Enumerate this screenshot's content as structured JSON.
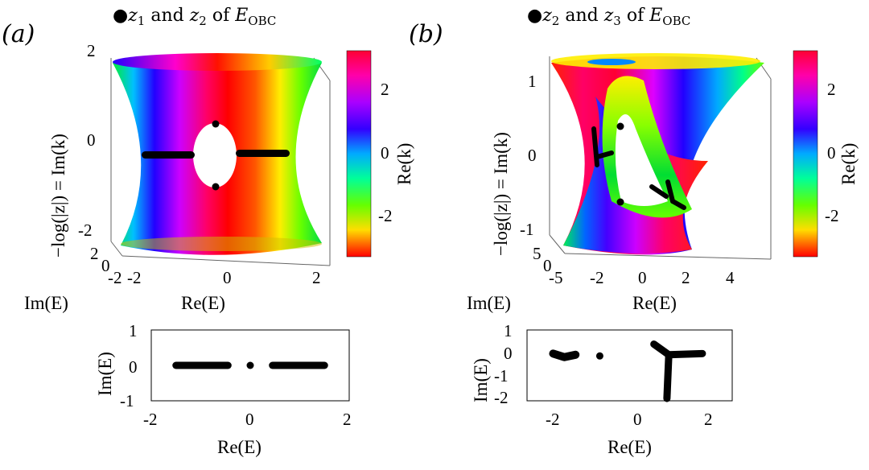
{
  "panels": [
    {
      "label": "(a)",
      "title": "●z₁ and z₂ of E_OBC",
      "surface_z_label": "−log(|z|) = Im(k)",
      "surface_x_label": "Re(E)",
      "surface_y_label": "Im(E)",
      "colorbar_label": "Re(k)",
      "colorbar_ticks": [
        "2",
        "0",
        "-2"
      ],
      "surface_z_ticks": [
        "2",
        "0",
        "-2"
      ],
      "surface_x_ticks": [
        "-2",
        "0",
        "2"
      ],
      "surface_y_ticks": [
        "2",
        "0",
        "-2"
      ],
      "spectrum_xlabel": "Re(E)",
      "spectrum_ylabel": "Im(E)",
      "spectrum_x_ticks": [
        "-2",
        "0",
        "2"
      ],
      "spectrum_y_ticks": [
        "1",
        "0",
        "-1"
      ]
    },
    {
      "label": "(b)",
      "title": "●z₂ and z₃ of E_OBC",
      "surface_z_label": "−log(|z|) = Im(k)",
      "surface_x_label": "Re(E)",
      "surface_y_label": "Im(E)",
      "colorbar_label": "Re(k)",
      "colorbar_ticks": [
        "2",
        "0",
        "-2"
      ],
      "surface_z_ticks": [
        "1",
        "0",
        "-1"
      ],
      "surface_x_ticks": [
        "-5",
        "-2",
        "0",
        "2",
        "4"
      ],
      "surface_y_ticks": [
        "5",
        "0"
      ],
      "spectrum_xlabel": "Re(E)",
      "spectrum_ylabel": "Im(E)",
      "spectrum_x_ticks": [
        "-2",
        "0",
        "2"
      ],
      "spectrum_y_ticks": [
        "1",
        "0",
        "-1",
        "-2"
      ]
    }
  ],
  "chart_data": [
    {
      "type": "scatter",
      "panel": "a-bottom",
      "xlim": [
        -2,
        2
      ],
      "ylim": [
        -1,
        1
      ],
      "series": [
        {
          "segments": [
            [
              -1.5,
              -0.45
            ],
            [
              0.45,
              1.5
            ]
          ],
          "y": 0
        },
        {
          "points": [
            [
              0,
              0
            ]
          ]
        }
      ]
    },
    {
      "type": "scatter",
      "panel": "b-bottom",
      "xlim": [
        -2.5,
        3
      ],
      "ylim": [
        -2,
        1
      ],
      "series": [
        {
          "cluster": [
            [
              -1.8,
              0.0
            ],
            [
              -1.5,
              -0.15
            ],
            [
              -1.2,
              -0.05
            ]
          ]
        },
        {
          "points": [
            [
              -0.55,
              -0.1
            ]
          ]
        },
        {
          "branches": [
            [
              [
                0.9,
                0.4
              ],
              [
                1.3,
                -0.05
              ]
            ],
            [
              [
                2.2,
                0.0
              ],
              [
                1.3,
                -0.05
              ]
            ],
            [
              [
                1.3,
                -0.05
              ],
              [
                1.25,
                -1.9
              ]
            ]
          ]
        }
      ]
    }
  ],
  "colors": {
    "surface_hues": [
      "#ff0000",
      "#ffcc00",
      "#00ff66",
      "#00e0ff",
      "#0000ff",
      "#cc00ff",
      "#ff0066"
    ],
    "dot": "#000000"
  }
}
